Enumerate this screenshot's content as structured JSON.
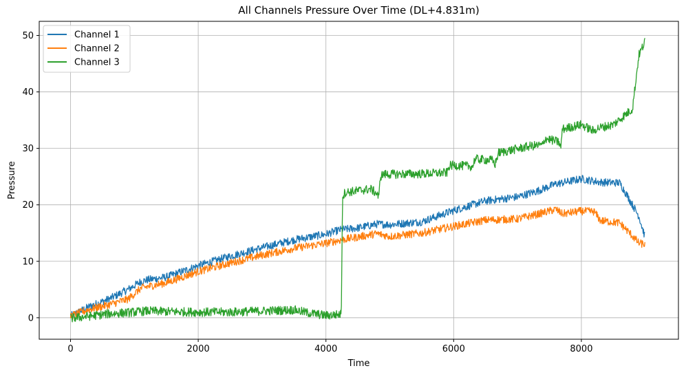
{
  "chart_data": {
    "type": "line",
    "title": "All Channels Pressure Over Time (DL+4.831m)",
    "xlabel": "Time",
    "ylabel": "Pressure",
    "xlim": [
      -490,
      9520
    ],
    "ylim": [
      -3.8,
      52.5
    ],
    "xticks": [
      0,
      2000,
      4000,
      6000,
      8000
    ],
    "yticks": [
      0,
      10,
      20,
      30,
      40,
      50
    ],
    "grid": true,
    "legend_position": "top-left",
    "series": [
      {
        "name": "Channel 1",
        "color": "#1f77b4",
        "noise": 0.7,
        "x": [
          0,
          300,
          600,
          900,
          1100,
          1200,
          1500,
          2000,
          2500,
          3000,
          3500,
          4000,
          4200,
          4250,
          4500,
          4800,
          5000,
          5500,
          6000,
          6500,
          7000,
          7300,
          7600,
          7700,
          8000,
          8100,
          8300,
          8600,
          8700,
          8900,
          9000
        ],
        "y": [
          0.3,
          2.0,
          3.3,
          5.0,
          6.4,
          6.7,
          7.2,
          9.2,
          10.9,
          12.4,
          13.8,
          14.8,
          15.5,
          15.6,
          15.9,
          16.6,
          16.5,
          17.0,
          19.0,
          20.7,
          21.4,
          22.4,
          23.7,
          23.9,
          24.6,
          24.4,
          24.0,
          23.9,
          22.0,
          18.0,
          14.2
        ]
      },
      {
        "name": "Channel 2",
        "color": "#ff7f0e",
        "noise": 0.7,
        "x": [
          0,
          300,
          600,
          900,
          1100,
          1200,
          1500,
          2000,
          2500,
          3000,
          3500,
          4000,
          4200,
          4250,
          4500,
          4800,
          5000,
          5500,
          6000,
          6500,
          7000,
          7300,
          7600,
          7700,
          8000,
          8200,
          8300,
          8600,
          8800,
          8900,
          9000
        ],
        "y": [
          0.3,
          1.5,
          2.3,
          3.3,
          5.2,
          5.5,
          6.2,
          8.2,
          9.7,
          11.1,
          12.3,
          13.2,
          13.7,
          13.8,
          14.3,
          14.9,
          14.4,
          15.0,
          16.2,
          17.3,
          17.5,
          18.3,
          19.2,
          18.4,
          18.9,
          18.8,
          17.2,
          16.8,
          14.5,
          13.2,
          13.0
        ]
      },
      {
        "name": "Channel 3",
        "color": "#2ca02c",
        "noise": 0.8,
        "x": [
          0,
          300,
          600,
          900,
          1200,
          1500,
          2000,
          2500,
          3000,
          3500,
          3700,
          4000,
          4200,
          4240,
          4260,
          4300,
          4700,
          4800,
          4830,
          4850,
          4900,
          5500,
          5900,
          5930,
          6000,
          6300,
          6330,
          6600,
          6650,
          6700,
          7200,
          7400,
          7430,
          7650,
          7680,
          7700,
          8000,
          8200,
          8230,
          8500,
          8800,
          8900,
          9000
        ],
        "y": [
          -0.1,
          0.3,
          0.7,
          0.9,
          1.2,
          1.1,
          1.0,
          1.0,
          1.2,
          1.4,
          0.9,
          0.4,
          0.6,
          0.6,
          21.5,
          22.2,
          22.8,
          22.0,
          21.2,
          25.0,
          25.4,
          25.5,
          25.7,
          26.9,
          27.0,
          26.8,
          28.1,
          27.9,
          27.2,
          29.2,
          30.4,
          30.6,
          31.8,
          31.1,
          30.0,
          33.4,
          34.2,
          33.0,
          33.5,
          34.2,
          37.0,
          46.5,
          49.0
        ]
      }
    ]
  }
}
